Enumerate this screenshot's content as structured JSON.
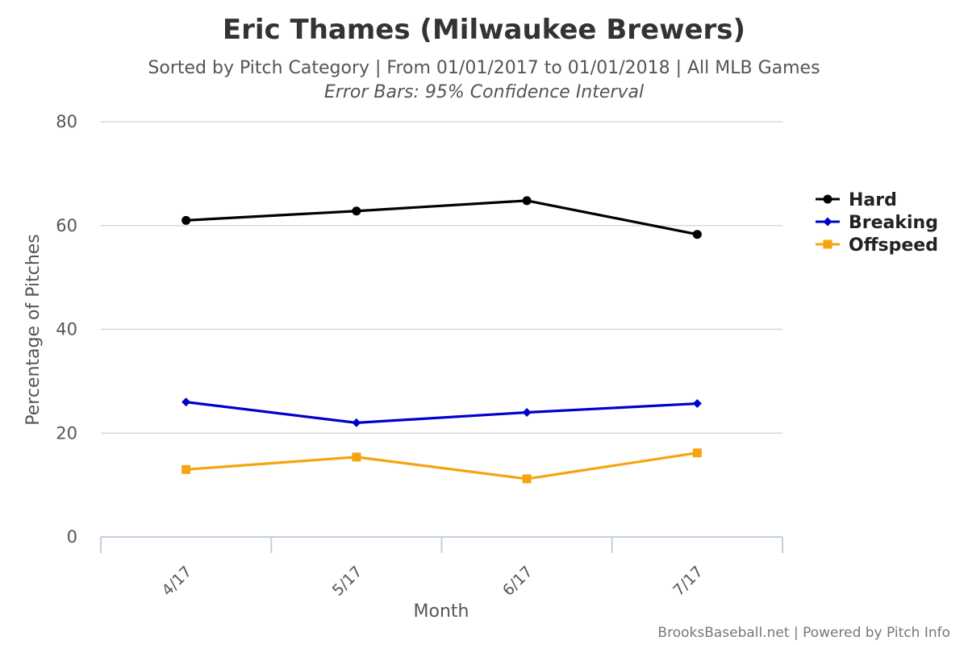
{
  "title": "Eric Thames (Milwaukee Brewers)",
  "subtitle": "Sorted by Pitch Category | From 01/01/2017 to 01/01/2018 | All MLB Games",
  "subtitle2": "Error Bars: 95% Confidence Interval",
  "credits": "BrooksBaseball.net | Powered by Pitch Info",
  "chart_data": {
    "type": "line",
    "title": "Eric Thames (Milwaukee Brewers)",
    "xlabel": "Month",
    "ylabel": "Percentage of Pitches",
    "categories": [
      "4/17",
      "5/17",
      "6/17",
      "7/17"
    ],
    "ylim": [
      0,
      80
    ],
    "yticks": [
      "0",
      "20",
      "40",
      "60",
      "80"
    ],
    "grid": true,
    "legend_position": "right",
    "series": [
      {
        "name": "Hard",
        "color": "#000000",
        "marker": "circle",
        "values": [
          61.0,
          62.8,
          64.8,
          58.3
        ]
      },
      {
        "name": "Breaking",
        "color": "#0000cc",
        "marker": "diamond",
        "values": [
          26.0,
          22.0,
          24.0,
          25.7
        ]
      },
      {
        "name": "Offspeed",
        "color": "#f5a40f",
        "marker": "square",
        "values": [
          13.0,
          15.4,
          11.2,
          16.2
        ]
      }
    ]
  }
}
